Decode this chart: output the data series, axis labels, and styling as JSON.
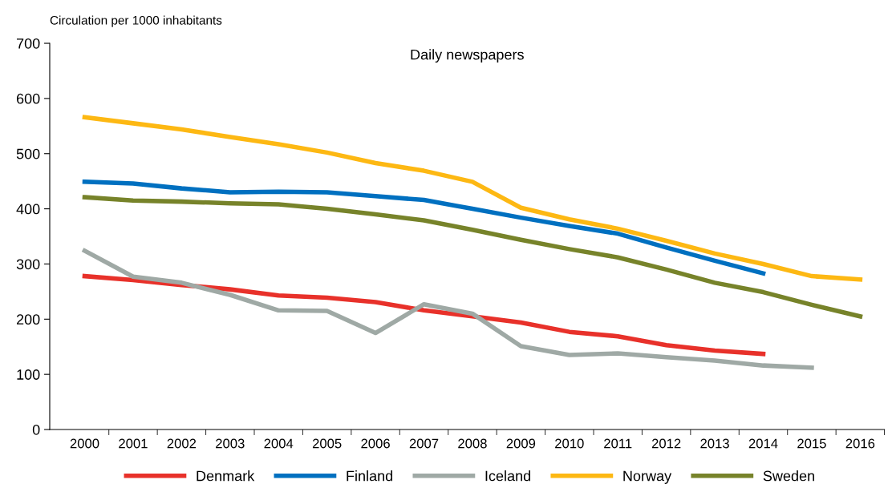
{
  "chart_data": {
    "type": "line",
    "title": "Daily newspapers",
    "ylabel": "Circulation per 1000 inhabitants",
    "categories": [
      "2000",
      "2001",
      "2002",
      "2003",
      "2004",
      "2005",
      "2006",
      "2007",
      "2008",
      "2009",
      "2010",
      "2011",
      "2012",
      "2013",
      "2014",
      "2015",
      "2016"
    ],
    "series": [
      {
        "name": "Denmark",
        "color": "#e8312a",
        "values": [
          278,
          271,
          262,
          254,
          243,
          239,
          231,
          216,
          205,
          194,
          177,
          169,
          153,
          143,
          137,
          null,
          null
        ]
      },
      {
        "name": "Finland",
        "color": "#0070c0",
        "values": [
          449,
          446,
          437,
          430,
          431,
          430,
          423,
          416,
          400,
          384,
          369,
          355,
          330,
          306,
          283,
          null,
          null
        ]
      },
      {
        "name": "Iceland",
        "color": "#9fa9a5",
        "values": [
          324,
          277,
          266,
          244,
          216,
          215,
          175,
          227,
          210,
          151,
          135,
          138,
          131,
          125,
          116,
          112,
          null
        ]
      },
      {
        "name": "Norway",
        "color": "#fdb813",
        "values": [
          566,
          555,
          544,
          530,
          517,
          502,
          483,
          469,
          449,
          402,
          381,
          364,
          342,
          319,
          300,
          278,
          272
        ]
      },
      {
        "name": "Sweden",
        "color": "#77832a",
        "values": [
          421,
          415,
          413,
          410,
          408,
          400,
          390,
          379,
          362,
          344,
          327,
          312,
          290,
          266,
          249,
          226,
          205
        ]
      }
    ],
    "ylim": [
      0,
      700
    ],
    "yticks": [
      0,
      100,
      200,
      300,
      400,
      500,
      600,
      700
    ],
    "grid": false,
    "legend": "bottom",
    "marker": "none",
    "line_style": "solid"
  }
}
